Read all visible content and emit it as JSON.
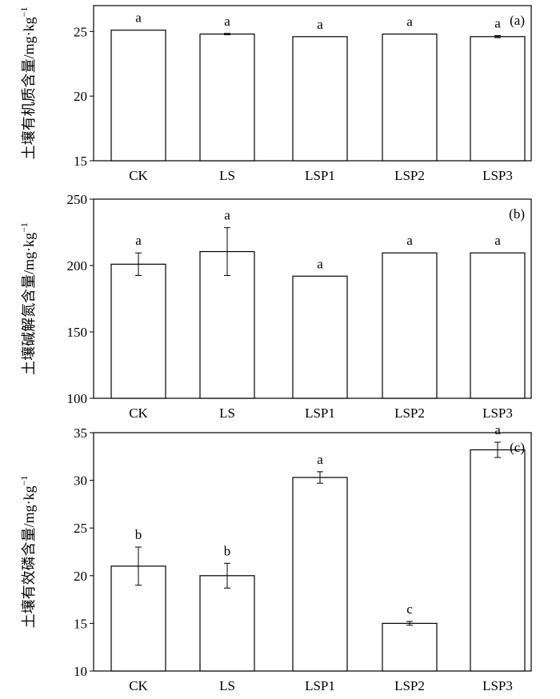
{
  "chart_data": [
    {
      "type": "bar",
      "panel_label": "(a)",
      "ylabel": "土壤有机质含量/mg·kg",
      "ylabel_sup": "−1",
      "categories": [
        "CK",
        "LS",
        "LSP1",
        "LSP2",
        "LSP3"
      ],
      "values": [
        25.1,
        24.8,
        24.6,
        24.8,
        24.6
      ],
      "errors": [
        0,
        0.05,
        0,
        0,
        0.08
      ],
      "significance": [
        "a",
        "a",
        "a",
        "a",
        "a"
      ],
      "ylim": [
        15,
        27
      ],
      "yticks": [
        15,
        20,
        25
      ],
      "grid": false
    },
    {
      "type": "bar",
      "panel_label": "(b)",
      "ylabel": "土壤碱解氮含量/mg·kg",
      "ylabel_sup": "−1",
      "categories": [
        "CK",
        "LS",
        "LSP1",
        "LSP2",
        "LSP3"
      ],
      "values": [
        201,
        210.5,
        192,
        209.5,
        209.5
      ],
      "errors": [
        8.5,
        18,
        0,
        0,
        0
      ],
      "significance": [
        "a",
        "a",
        "a",
        "a",
        "a"
      ],
      "ylim": [
        100,
        250
      ],
      "yticks": [
        100,
        150,
        200,
        250
      ],
      "grid": false
    },
    {
      "type": "bar",
      "panel_label": "(c)",
      "ylabel": "土壤有效磷含量/mg·kg",
      "ylabel_sup": "−1",
      "categories": [
        "CK",
        "LS",
        "LSP1",
        "LSP2",
        "LSP3"
      ],
      "values": [
        21,
        20,
        30.3,
        15,
        33.2
      ],
      "errors": [
        2,
        1.3,
        0.6,
        0.2,
        0.8
      ],
      "significance": [
        "b",
        "b",
        "a",
        "c",
        "a"
      ],
      "ylim": [
        10,
        35
      ],
      "yticks": [
        10,
        15,
        20,
        25,
        30,
        35
      ],
      "grid": false
    }
  ]
}
